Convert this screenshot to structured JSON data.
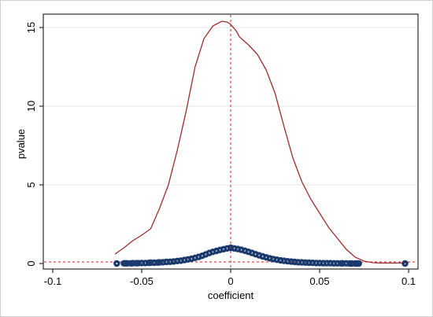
{
  "chart_data": {
    "type": "scatter",
    "title": "",
    "xlabel": "coefficient",
    "ylabel": "pvalue",
    "xlim": [
      -0.1,
      0.1
    ],
    "ylim": [
      0,
      15
    ],
    "x_ticks": [
      -0.1,
      -0.05,
      0,
      0.05,
      0.1
    ],
    "x_tick_labels": [
      "-0.1",
      "-0.05",
      "0",
      "0.05",
      "0.1"
    ],
    "y_ticks": [
      0,
      5,
      10,
      15
    ],
    "y_tick_labels": [
      "0",
      "5",
      "10",
      "15"
    ],
    "grid": "horizontal",
    "legend": "none",
    "colors": {
      "density": "#9b2c2c",
      "markers": "#1a3a6e",
      "reference": "#cc2222",
      "grid": "#e4e4e4",
      "axis": "#000000"
    },
    "reference_lines": {
      "x": 0,
      "y": 0.1
    },
    "density_line": {
      "x": [
        -0.065,
        -0.06,
        -0.055,
        -0.05,
        -0.045,
        -0.04,
        -0.035,
        -0.03,
        -0.025,
        -0.02,
        -0.015,
        -0.01,
        -0.005,
        -0.002,
        0,
        0.003,
        0.005,
        0.01,
        0.015,
        0.02,
        0.025,
        0.03,
        0.035,
        0.04,
        0.045,
        0.05,
        0.055,
        0.06,
        0.065,
        0.07,
        0.075,
        0.08,
        0.085,
        0.09,
        0.095,
        0.1
      ],
      "y": [
        0.6,
        1.0,
        1.45,
        1.8,
        2.2,
        3.5,
        5.0,
        7.2,
        9.7,
        12.5,
        14.3,
        15.1,
        15.4,
        15.35,
        15.2,
        14.8,
        14.4,
        13.9,
        13.3,
        12.3,
        10.8,
        8.7,
        6.7,
        5.2,
        4.1,
        3.2,
        2.3,
        1.6,
        0.9,
        0.4,
        0.15,
        0.05,
        0.03,
        0.03,
        0.03,
        0.03
      ]
    },
    "scatter_points": {
      "x": [
        -0.064,
        -0.06,
        -0.059,
        -0.058,
        -0.056,
        -0.055,
        -0.053,
        -0.052,
        -0.05,
        -0.048,
        -0.046,
        -0.045,
        -0.043,
        -0.041,
        -0.04,
        -0.038,
        -0.036,
        -0.034,
        -0.032,
        -0.03,
        -0.028,
        -0.026,
        -0.024,
        -0.022,
        -0.02,
        -0.018,
        -0.016,
        -0.014,
        -0.012,
        -0.01,
        -0.008,
        -0.006,
        -0.004,
        -0.002,
        0,
        0.002,
        0.004,
        0.006,
        0.008,
        0.01,
        0.012,
        0.014,
        0.016,
        0.018,
        0.02,
        0.022,
        0.024,
        0.026,
        0.028,
        0.03,
        0.032,
        0.034,
        0.036,
        0.038,
        0.04,
        0.042,
        0.044,
        0.046,
        0.048,
        0.05,
        0.052,
        0.054,
        0.056,
        0.058,
        0.06,
        0.062,
        0.063,
        0.065,
        0.067,
        0.068,
        0.07,
        0.071,
        0.072,
        0.098
      ],
      "y": [
        0.0,
        0.01,
        0.01,
        0.01,
        0.01,
        0.02,
        0.02,
        0.02,
        0.03,
        0.03,
        0.04,
        0.05,
        0.05,
        0.06,
        0.07,
        0.08,
        0.1,
        0.11,
        0.13,
        0.16,
        0.18,
        0.22,
        0.26,
        0.3,
        0.36,
        0.42,
        0.49,
        0.58,
        0.67,
        0.74,
        0.8,
        0.86,
        0.91,
        0.96,
        1.0,
        0.96,
        0.92,
        0.87,
        0.81,
        0.74,
        0.67,
        0.59,
        0.52,
        0.45,
        0.39,
        0.33,
        0.28,
        0.24,
        0.2,
        0.17,
        0.14,
        0.12,
        0.1,
        0.08,
        0.07,
        0.06,
        0.05,
        0.04,
        0.03,
        0.03,
        0.02,
        0.02,
        0.02,
        0.01,
        0.01,
        0.01,
        0.01,
        0.01,
        0.0,
        0.0,
        0.0,
        0.0,
        0.0,
        0.0
      ]
    }
  }
}
